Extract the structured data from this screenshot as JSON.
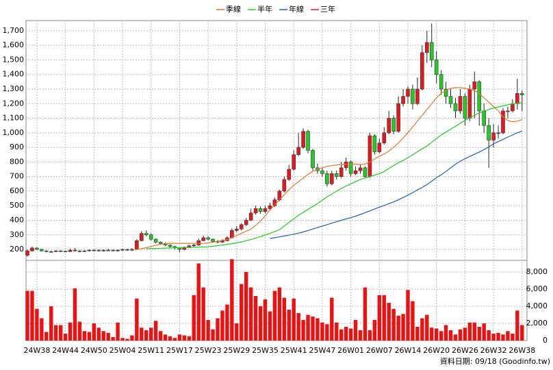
{
  "chart_data": {
    "type": "candlestick",
    "categories": [
      null,
      null,
      "24W38",
      null,
      null,
      null,
      null,
      null,
      "24W44",
      null,
      null,
      null,
      null,
      null,
      "24W50",
      null,
      null,
      null,
      null,
      null,
      "25W04",
      null,
      null,
      null,
      null,
      null,
      "25W11",
      null,
      null,
      null,
      null,
      null,
      "25W17",
      null,
      null,
      null,
      null,
      null,
      "25W23",
      null,
      null,
      null,
      null,
      null,
      "25W29",
      null,
      null,
      null,
      null,
      null,
      "25W35",
      null,
      null,
      null,
      null,
      null,
      "25W41",
      null,
      null,
      null,
      null,
      null,
      "25W47",
      null,
      null,
      null,
      null,
      null,
      "26W01",
      null,
      null,
      null,
      null,
      null,
      "26W07",
      null,
      null,
      null,
      null,
      null,
      "26W14",
      null,
      null,
      null,
      null,
      null,
      "26W20",
      null,
      null,
      null,
      null,
      null,
      "26W26",
      null,
      null,
      null,
      null,
      null,
      "26W32",
      null,
      null,
      null,
      null,
      null,
      "26W38"
    ],
    "open": [
      160,
      190,
      210,
      200,
      190,
      185,
      185,
      190,
      188,
      185,
      195,
      190,
      185,
      190,
      195,
      195,
      190,
      195,
      195,
      190,
      195,
      200,
      195,
      200,
      260,
      310,
      300,
      270,
      250,
      240,
      230,
      220,
      210,
      200,
      215,
      225,
      230,
      260,
      280,
      270,
      255,
      250,
      260,
      280,
      330,
      340,
      370,
      400,
      450,
      480,
      460,
      480,
      500,
      540,
      600,
      680,
      750,
      850,
      900,
      1010,
      880,
      760,
      740,
      720,
      650,
      720,
      700,
      760,
      800,
      720,
      740,
      760,
      700,
      980,
      870,
      930,
      1000,
      1100,
      1010,
      1200,
      1250,
      1300,
      1200,
      1300,
      1550,
      1620,
      1500,
      1400,
      1300,
      1250,
      1200,
      1150,
      1250,
      1100,
      1300,
      1350,
      1150,
      1050,
      950,
      1000,
      1000,
      1150,
      1150,
      1200,
      1270
    ],
    "high": [
      200,
      220,
      215,
      205,
      195,
      192,
      195,
      195,
      192,
      205,
      210,
      195,
      195,
      200,
      200,
      200,
      200,
      205,
      200,
      200,
      205,
      205,
      210,
      270,
      325,
      330,
      310,
      275,
      255,
      248,
      235,
      225,
      215,
      220,
      232,
      240,
      275,
      295,
      290,
      275,
      265,
      270,
      290,
      345,
      360,
      380,
      415,
      480,
      500,
      495,
      500,
      520,
      555,
      610,
      700,
      780,
      880,
      1000,
      1030,
      1020,
      890,
      790,
      760,
      740,
      740,
      740,
      800,
      830,
      810,
      770,
      780,
      770,
      1000,
      990,
      960,
      1040,
      1150,
      1120,
      1250,
      1300,
      1320,
      1330,
      1380,
      1600,
      1700,
      1750,
      1560,
      1430,
      1350,
      1300,
      1240,
      1300,
      1270,
      1330,
      1420,
      1360,
      1200,
      1100,
      1060,
      1050,
      1170,
      1180,
      1230,
      1370,
      1290
    ],
    "low": [
      150,
      185,
      195,
      185,
      180,
      180,
      182,
      183,
      180,
      183,
      185,
      180,
      182,
      186,
      190,
      185,
      186,
      190,
      186,
      185,
      190,
      190,
      190,
      198,
      255,
      290,
      262,
      240,
      232,
      222,
      210,
      200,
      180,
      195,
      210,
      218,
      225,
      255,
      262,
      245,
      242,
      245,
      255,
      275,
      320,
      330,
      360,
      395,
      440,
      445,
      450,
      465,
      490,
      530,
      590,
      670,
      740,
      840,
      890,
      860,
      740,
      720,
      700,
      630,
      640,
      680,
      690,
      740,
      700,
      710,
      720,
      690,
      690,
      850,
      860,
      920,
      990,
      990,
      1000,
      1180,
      1200,
      1160,
      1190,
      1290,
      1480,
      1450,
      1340,
      1260,
      1200,
      1170,
      1100,
      1130,
      1050,
      1080,
      1100,
      1050,
      1000,
      760,
      900,
      960,
      990,
      1100,
      1140,
      1160,
      1150
    ],
    "close": [
      190,
      210,
      200,
      190,
      185,
      185,
      190,
      188,
      185,
      195,
      190,
      185,
      190,
      195,
      195,
      190,
      195,
      195,
      190,
      195,
      200,
      195,
      200,
      260,
      310,
      300,
      270,
      250,
      240,
      230,
      220,
      210,
      200,
      215,
      225,
      230,
      260,
      280,
      270,
      255,
      250,
      260,
      280,
      330,
      340,
      370,
      400,
      450,
      480,
      460,
      480,
      500,
      540,
      600,
      680,
      750,
      850,
      900,
      1010,
      880,
      760,
      740,
      720,
      650,
      720,
      700,
      760,
      800,
      720,
      740,
      760,
      700,
      980,
      870,
      930,
      1000,
      1100,
      1010,
      1200,
      1250,
      1300,
      1200,
      1300,
      1550,
      1620,
      1500,
      1400,
      1300,
      1250,
      1200,
      1150,
      1250,
      1100,
      1300,
      1350,
      1150,
      1050,
      950,
      1000,
      1000,
      1150,
      1150,
      1200,
      1270,
      1260
    ],
    "up_color": "#e8171e",
    "down_color": "#22cc22",
    "ylim": [
      125,
      1770
    ],
    "yticks": [
      200,
      300,
      400,
      500,
      600,
      700,
      800,
      900,
      {
        "value": 1000,
        "label": "1,000"
      },
      {
        "value": 1100,
        "label": "1,100"
      },
      {
        "value": 1200,
        "label": "1,200"
      },
      {
        "value": 1300,
        "label": "1,300"
      },
      {
        "value": 1400,
        "label": "1,400"
      },
      {
        "value": 1500,
        "label": "1,500"
      },
      {
        "value": 1600,
        "label": "1,600"
      },
      {
        "value": 1700,
        "label": "1,700"
      }
    ],
    "grid": true,
    "series": [
      {
        "name": "季線",
        "color": "#e0782a",
        "values": [
          null,
          null,
          null,
          null,
          null,
          null,
          null,
          null,
          null,
          null,
          null,
          null,
          null,
          null,
          null,
          null,
          null,
          null,
          null,
          null,
          null,
          null,
          null,
          200,
          205,
          212,
          220,
          228,
          235,
          240,
          242,
          242,
          242,
          242,
          242,
          241,
          240,
          241,
          245,
          250,
          255,
          262,
          268,
          280,
          295,
          310,
          325,
          340,
          365,
          395,
          430,
          470,
          505,
          540,
          575,
          610,
          640,
          665,
          690,
          715,
          735,
          750,
          760,
          770,
          775,
          780,
          783,
          785,
          785,
          785,
          783,
          785,
          800,
          820,
          840,
          855,
          875,
          900,
          930,
          965,
          1000,
          1040,
          1080,
          1120,
          1160,
          1200,
          1240,
          1270,
          1290,
          1305,
          1310,
          1310,
          1305,
          1300,
          1290,
          1270,
          1240,
          1210,
          1180,
          1150,
          1110,
          1085,
          1075,
          1080,
          1090
        ]
      },
      {
        "name": "半年",
        "color": "#22cc22",
        "values": [
          null,
          null,
          null,
          null,
          null,
          null,
          null,
          null,
          null,
          null,
          null,
          null,
          null,
          null,
          null,
          null,
          null,
          null,
          null,
          null,
          null,
          null,
          null,
          null,
          null,
          205,
          206,
          207,
          208,
          209,
          210,
          211,
          212,
          213,
          214,
          215,
          216,
          217,
          218,
          222,
          226,
          230,
          235,
          240,
          245,
          252,
          260,
          268,
          278,
          288,
          299,
          310,
          322,
          336,
          360,
          385,
          410,
          435,
          455,
          475,
          495,
          515,
          538,
          560,
          580,
          600,
          618,
          635,
          650,
          665,
          680,
          690,
          700,
          710,
          720,
          735,
          755,
          775,
          795,
          810,
          830,
          850,
          870,
          890,
          910,
          935,
          960,
          985,
          1005,
          1025,
          1045,
          1065,
          1085,
          1103,
          1120,
          1135,
          1150,
          1160,
          1170,
          1178,
          1185,
          1192,
          1198,
          1203,
          1206
        ]
      },
      {
        "name": "年線",
        "color": "#1f5fb0",
        "values": [
          null,
          null,
          null,
          null,
          null,
          null,
          null,
          null,
          null,
          null,
          null,
          null,
          null,
          null,
          null,
          null,
          null,
          null,
          null,
          null,
          null,
          null,
          null,
          null,
          null,
          null,
          null,
          null,
          null,
          null,
          null,
          null,
          null,
          null,
          null,
          null,
          null,
          null,
          null,
          null,
          null,
          null,
          null,
          null,
          null,
          null,
          null,
          null,
          null,
          null,
          null,
          275,
          280,
          286,
          292,
          298,
          305,
          312,
          320,
          330,
          340,
          350,
          360,
          370,
          380,
          390,
          400,
          410,
          418,
          428,
          440,
          452,
          465,
          477,
          490,
          502,
          514,
          526,
          540,
          556,
          572,
          590,
          608,
          625,
          645,
          668,
          692,
          712,
          735,
          760,
          785,
          806,
          822,
          838,
          853,
          868,
          885,
          903,
          924,
          940,
          955,
          971,
          985,
          1000,
          1012
        ]
      },
      {
        "name": "三年",
        "color": "#e8171e"
      }
    ],
    "volume": {
      "color": "#ee1111",
      "ylim": [
        0,
        9360
      ],
      "yticks": [
        0,
        {
          "value": 2000,
          "label": "2,000"
        },
        {
          "value": 4000,
          "label": "4,000"
        },
        {
          "value": 6000,
          "label": "6,000"
        },
        {
          "value": 8000,
          "label": "8,000"
        }
      ],
      "values": [
        5800,
        5800,
        3700,
        2600,
        1000,
        4000,
        1800,
        1800,
        800,
        2100,
        6100,
        2200,
        1100,
        1000,
        2000,
        1500,
        1100,
        900,
        400,
        2100,
        300,
        200,
        600,
        4900,
        1500,
        1200,
        1500,
        2300,
        1100,
        700,
        500,
        300,
        700,
        600,
        500,
        5300,
        9000,
        6200,
        2400,
        1300,
        2600,
        3500,
        4200,
        9500,
        2000,
        6600,
        8000,
        6200,
        5200,
        4000,
        4800,
        3400,
        5800,
        6200,
        5000,
        3600,
        4900,
        3200,
        2400,
        3000,
        2800,
        2600,
        2100,
        1900,
        5000,
        2100,
        1300,
        1600,
        1400,
        2400,
        1200,
        6200,
        1200,
        2400,
        5300,
        5300,
        4400,
        3700,
        2900,
        3100,
        5900,
        4600,
        1600,
        2600,
        3000,
        1500,
        1400,
        1100,
        1800,
        1200,
        700,
        1300,
        1500,
        2100,
        2100,
        1600,
        2000,
        1200,
        800,
        900,
        700,
        1100,
        800,
        3500,
        1800
      ]
    },
    "footer": "資料日期: 09/18 (Goodinfo.tw)"
  }
}
